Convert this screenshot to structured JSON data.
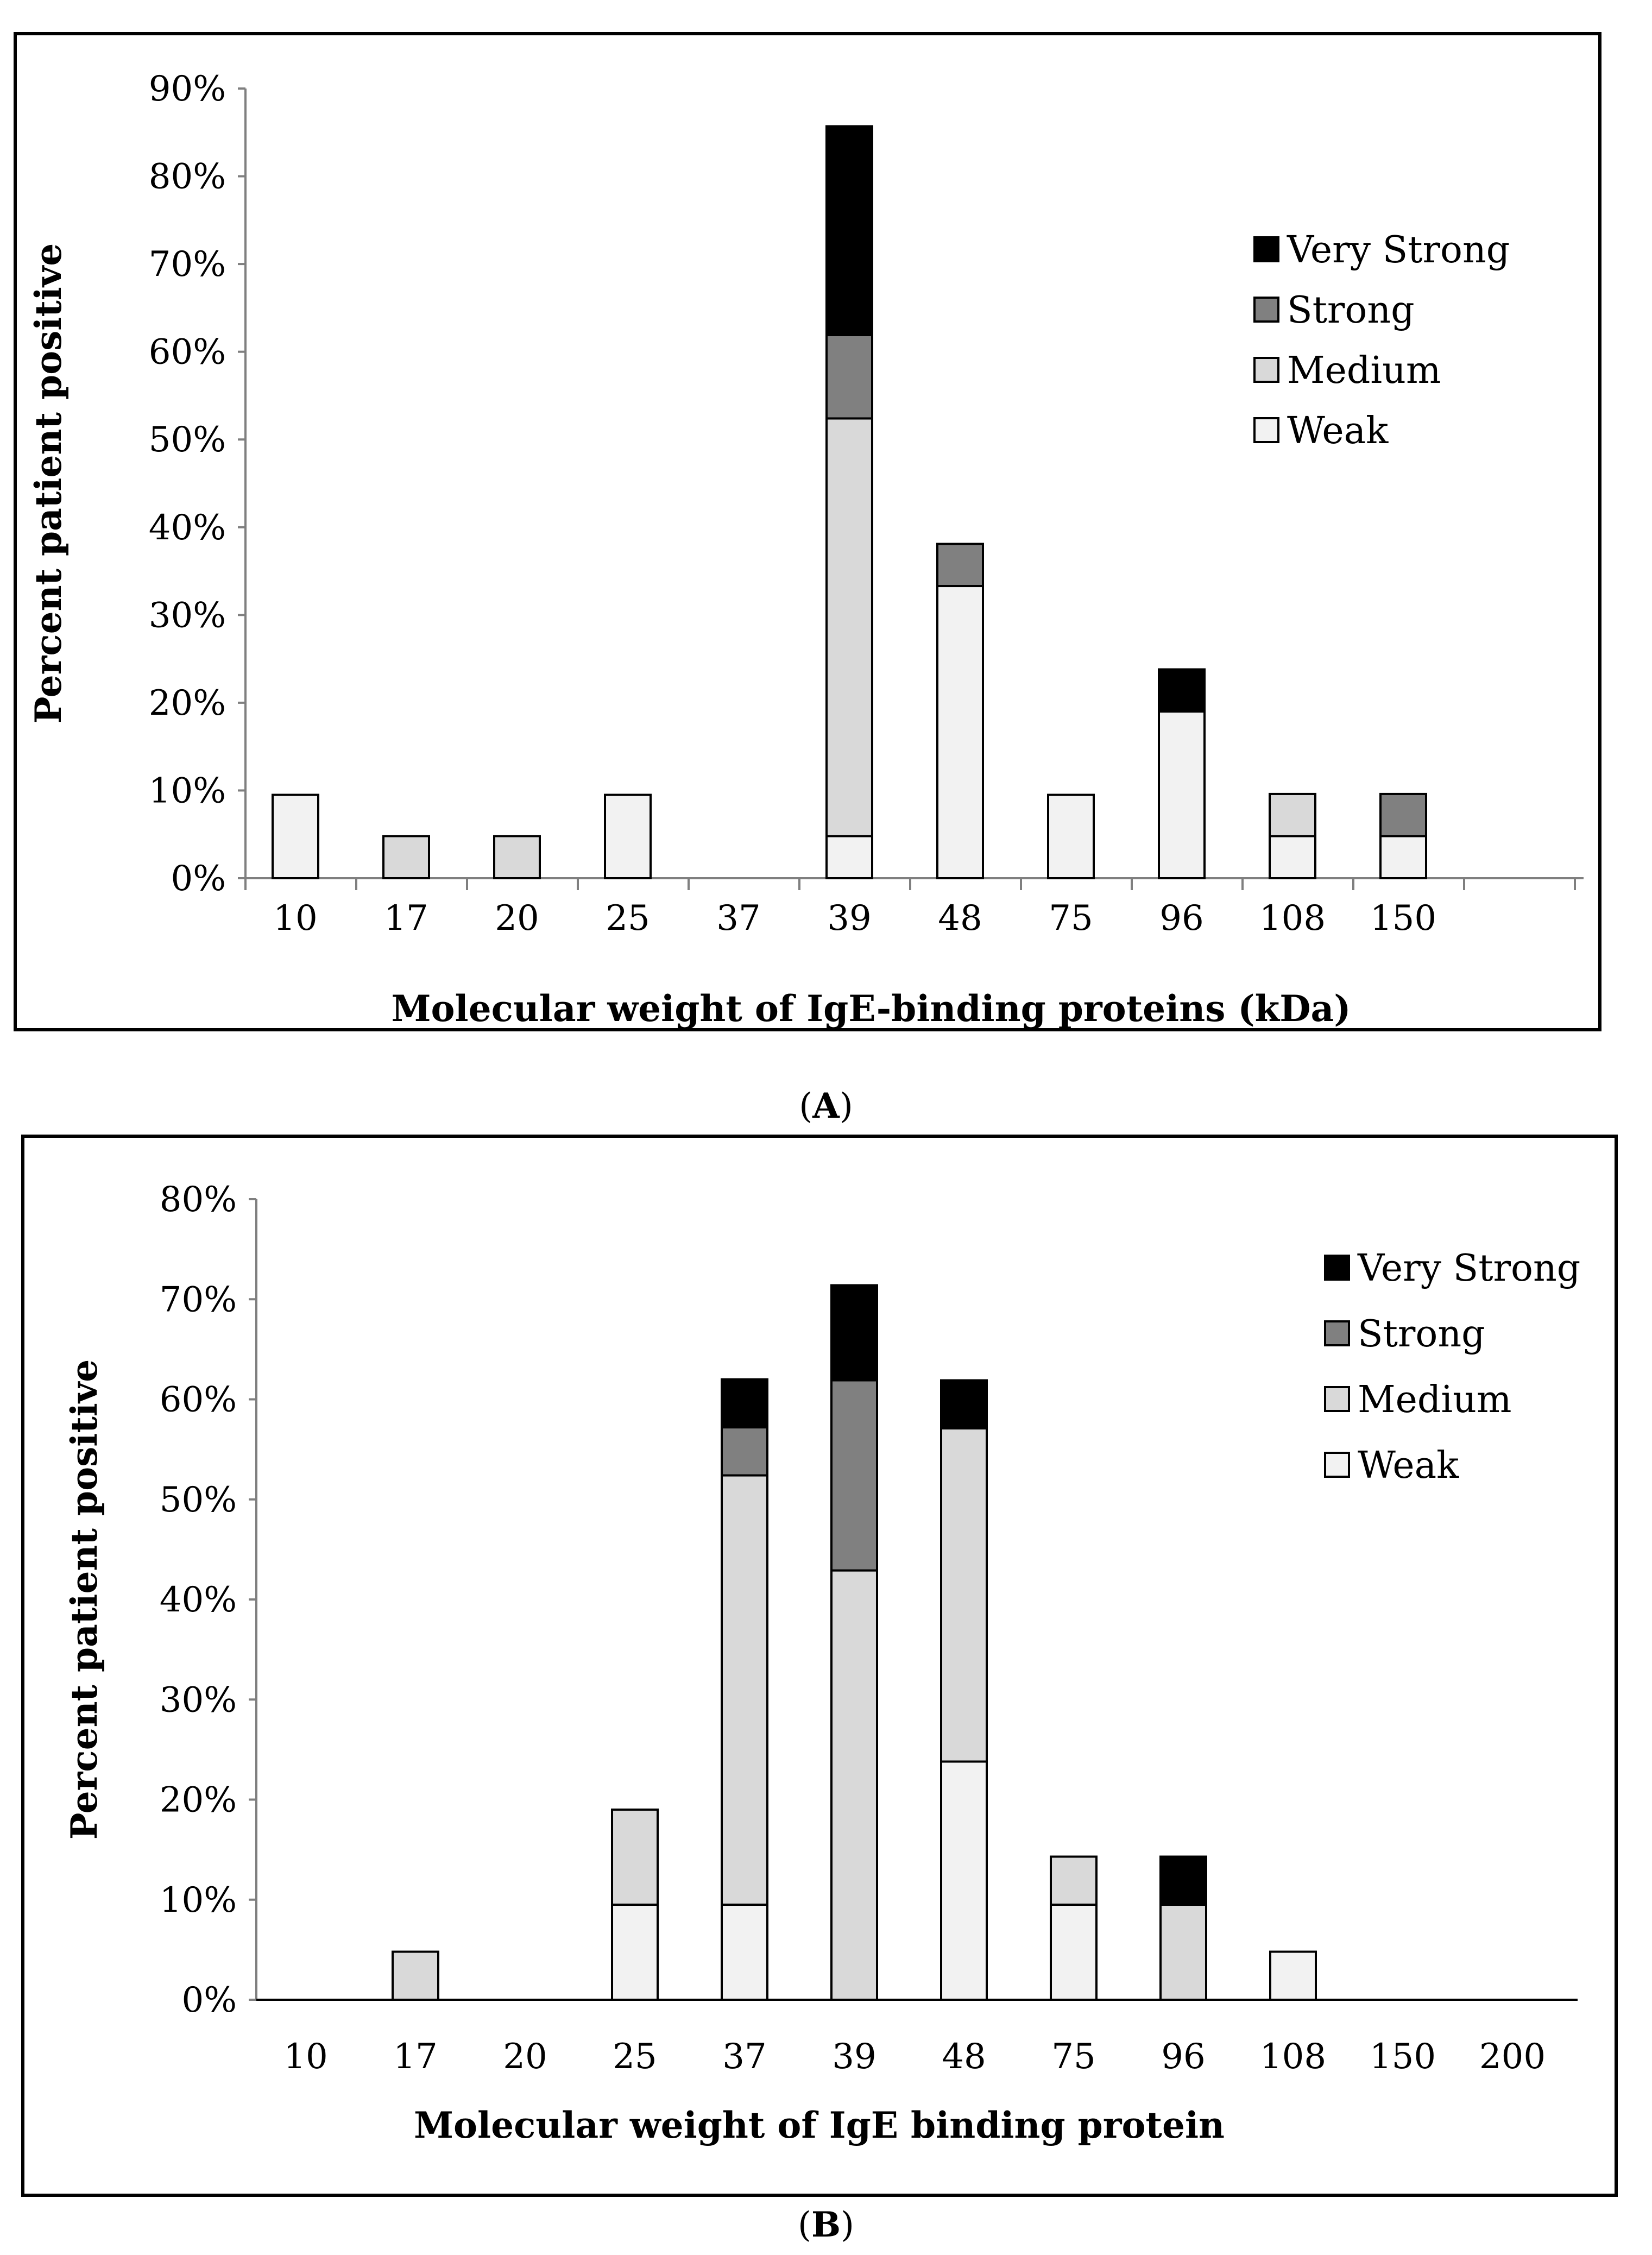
{
  "colors": {
    "very_strong": "#000000",
    "strong": "#808080",
    "medium": "#d9d9d9",
    "weak": "#f2f2f2"
  },
  "chart_data": [
    {
      "type": "bar",
      "stacked": true,
      "panel_label": "A",
      "title": "",
      "xlabel": "Molecular weight of IgE-binding proteins (kDa)",
      "ylabel": "Percent patient positive",
      "categories": [
        "10",
        "17",
        "20",
        "25",
        "37",
        "39",
        "48",
        "75",
        "96",
        "108",
        "150"
      ],
      "ylim": [
        0,
        90
      ],
      "yticks": [
        "0%",
        "10%",
        "20%",
        "30%",
        "40%",
        "50%",
        "60%",
        "70%",
        "80%",
        "90%"
      ],
      "legend_position": "right",
      "legend_order": [
        "Very Strong",
        "Strong",
        "Medium",
        "Weak"
      ],
      "series": [
        {
          "name": "Weak",
          "color": "#f2f2f2",
          "values": [
            9.5,
            0,
            0,
            9.5,
            0,
            4.8,
            33.3,
            9.5,
            19,
            4.8,
            4.8
          ]
        },
        {
          "name": "Medium",
          "color": "#d9d9d9",
          "values": [
            0,
            4.8,
            4.8,
            0,
            0,
            47.6,
            0,
            0,
            0,
            4.8,
            0
          ]
        },
        {
          "name": "Strong",
          "color": "#808080",
          "values": [
            0,
            0,
            0,
            0,
            0,
            9.5,
            4.8,
            0,
            0,
            0,
            4.8
          ]
        },
        {
          "name": "Very Strong",
          "color": "#000000",
          "values": [
            0,
            0,
            0,
            0,
            0,
            23.8,
            0,
            0,
            4.8,
            0,
            0
          ]
        }
      ]
    },
    {
      "type": "bar",
      "stacked": true,
      "panel_label": "B",
      "title": "",
      "xlabel": "Molecular weight of IgE binding protein",
      "ylabel": "Percent patient positive",
      "categories": [
        "10",
        "17",
        "20",
        "25",
        "37",
        "39",
        "48",
        "75",
        "96",
        "108",
        "150",
        "200"
      ],
      "ylim": [
        0,
        80
      ],
      "yticks": [
        "0%",
        "10%",
        "20%",
        "30%",
        "40%",
        "50%",
        "60%",
        "70%",
        "80%"
      ],
      "legend_position": "right",
      "legend_order": [
        "Very Strong",
        "Strong",
        "Medium",
        "Weak"
      ],
      "series": [
        {
          "name": "Weak",
          "color": "#f2f2f2",
          "values": [
            0,
            0,
            0,
            9.5,
            9.5,
            0,
            23.8,
            9.5,
            0,
            4.8,
            0,
            0
          ]
        },
        {
          "name": "Medium",
          "color": "#d9d9d9",
          "values": [
            0,
            4.8,
            0,
            9.5,
            42.9,
            42.9,
            33.3,
            4.8,
            9.5,
            0,
            0,
            0
          ]
        },
        {
          "name": "Strong",
          "color": "#808080",
          "values": [
            0,
            0,
            0,
            0,
            4.8,
            19,
            0,
            0,
            0,
            0,
            0,
            0
          ]
        },
        {
          "name": "Very Strong",
          "color": "#000000",
          "values": [
            0,
            0,
            0,
            0,
            4.8,
            9.5,
            4.8,
            0,
            4.8,
            0,
            0,
            0
          ]
        }
      ]
    }
  ]
}
